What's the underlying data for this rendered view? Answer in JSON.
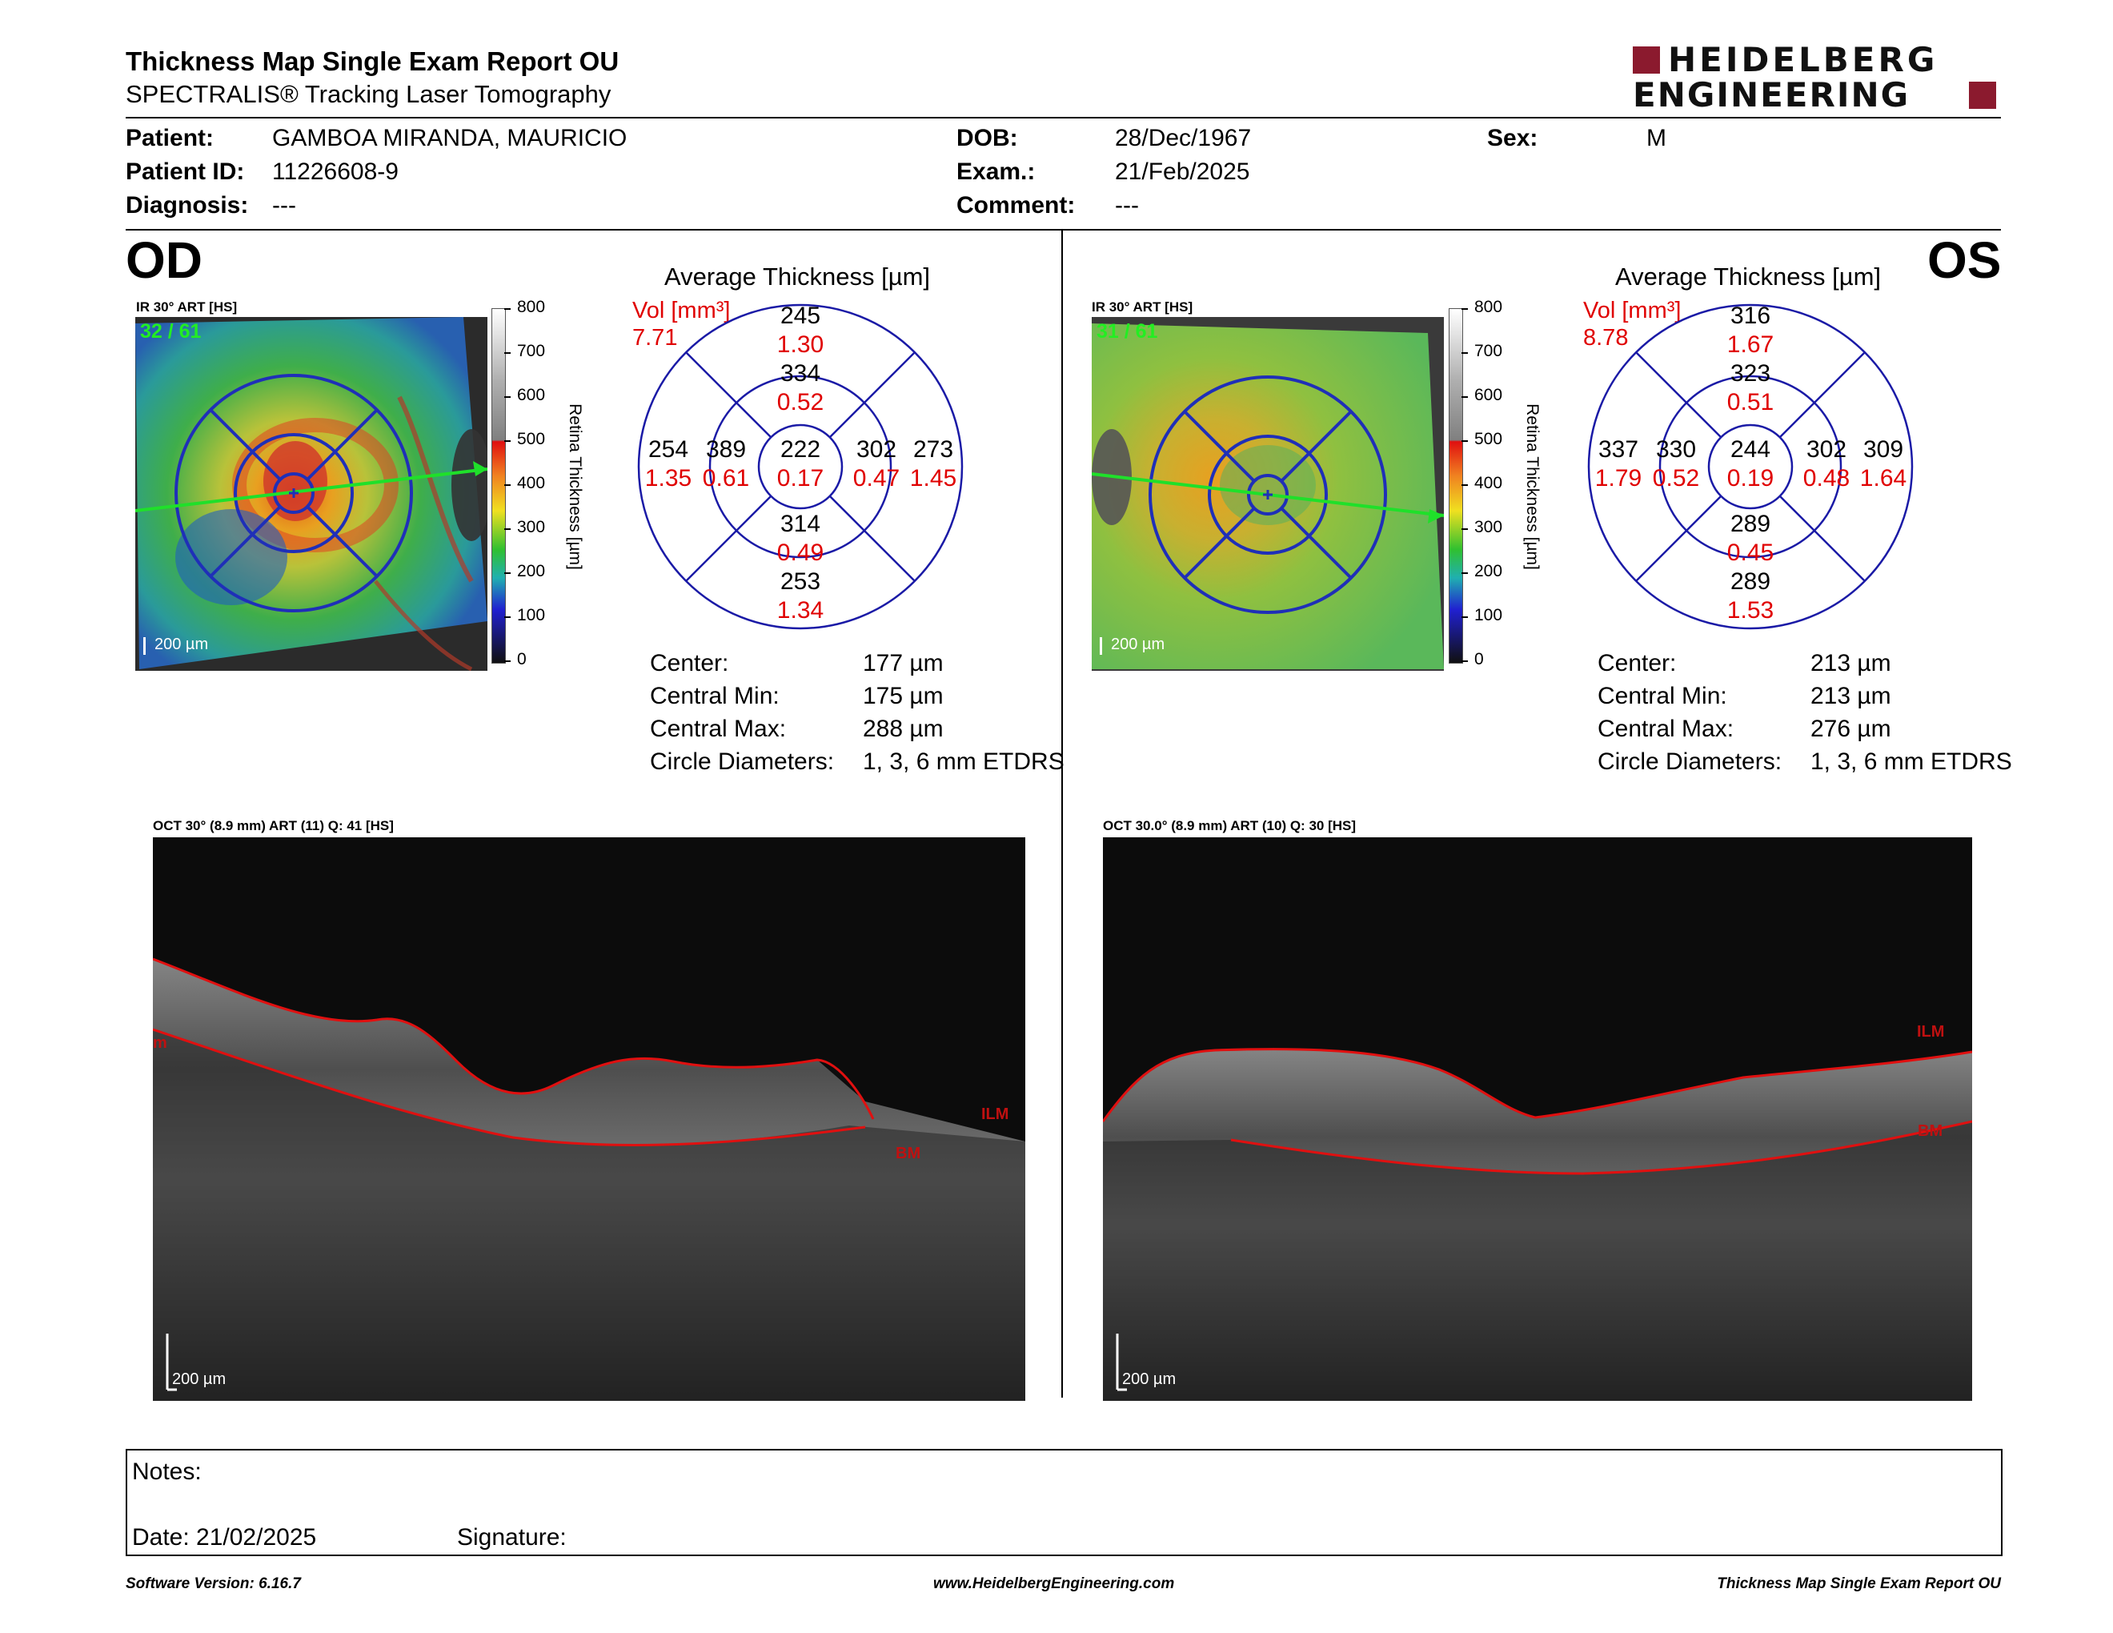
{
  "header": {
    "title": "Thickness Map Single Exam Report OU",
    "subtitle": "SPECTRALIS® Tracking Laser Tomography",
    "logo": {
      "line1": "HEIDELBERG",
      "line2": "ENGINEERING",
      "color": "#8b1a2e"
    }
  },
  "patient": {
    "patient_label": "Patient:",
    "patient_value": "GAMBOA MIRANDA, MAURICIO",
    "id_label": "Patient ID:",
    "id_value": "11226608-9",
    "diag_label": "Diagnosis:",
    "diag_value": "---",
    "dob_label": "DOB:",
    "dob_value": "28/Dec/1967",
    "exam_label": "Exam.:",
    "exam_value": "21/Feb/2025",
    "comment_label": "Comment:",
    "comment_value": "---",
    "sex_label": "Sex:",
    "sex_value": "M"
  },
  "od": {
    "label": "OD",
    "ir_label": "IR 30° ART [HS]",
    "frame": "32 / 61",
    "scale": "200 µm",
    "avg_title": "Average Thickness [µm]",
    "vol_label": "Vol [mm³]",
    "vol_value": "7.71",
    "grid": {
      "superior_outer": "245",
      "superior_outer_vol": "1.30",
      "superior_inner": "334",
      "superior_inner_vol": "0.52",
      "temporal_outer": "254",
      "temporal_outer_vol": "1.35",
      "temporal_inner": "389",
      "temporal_inner_vol": "0.61",
      "center": "222",
      "center_vol": "0.17",
      "nasal_inner": "302",
      "nasal_inner_vol": "0.47",
      "nasal_outer": "273",
      "nasal_outer_vol": "1.45",
      "inferior_inner": "314",
      "inferior_inner_vol": "0.49",
      "inferior_outer": "253",
      "inferior_outer_vol": "1.34"
    },
    "stats": {
      "center_label": "Center:",
      "center_value": "177 µm",
      "min_label": "Central Min:",
      "min_value": "175 µm",
      "max_label": "Central Max:",
      "max_value": "288 µm",
      "diam_label": "Circle Diameters:",
      "diam_value": "1, 3, 6 mm ETDRS"
    },
    "oct_label": "OCT 30° (8.9 mm) ART (11) Q: 41 [HS]",
    "oct_scale": "200 µm",
    "ilm": "ILM",
    "bm": "BM",
    "edge_mark": "m"
  },
  "os": {
    "label": "OS",
    "ir_label": "IR 30° ART [HS]",
    "frame": "31 / 61",
    "scale": "200 µm",
    "avg_title": "Average Thickness [µm]",
    "vol_label": "Vol [mm³]",
    "vol_value": "8.78",
    "grid": {
      "superior_outer": "316",
      "superior_outer_vol": "1.67",
      "superior_inner": "323",
      "superior_inner_vol": "0.51",
      "temporal_outer": "337",
      "temporal_outer_vol": "1.79",
      "temporal_inner": "330",
      "temporal_inner_vol": "0.52",
      "center": "244",
      "center_vol": "0.19",
      "nasal_inner": "302",
      "nasal_inner_vol": "0.48",
      "nasal_outer": "309",
      "nasal_outer_vol": "1.64",
      "inferior_inner": "289",
      "inferior_inner_vol": "0.45",
      "inferior_outer": "289",
      "inferior_outer_vol": "1.53"
    },
    "stats": {
      "center_label": "Center:",
      "center_value": "213 µm",
      "min_label": "Central Min:",
      "min_value": "213 µm",
      "max_label": "Central Max:",
      "max_value": "276 µm",
      "diam_label": "Circle Diameters:",
      "diam_value": "1, 3, 6 mm ETDRS"
    },
    "oct_label": "OCT 30.0° (8.9 mm) ART (10) Q: 30 [HS]",
    "oct_scale": "200 µm",
    "ilm": "ILM",
    "bm": "BM"
  },
  "colorbar": {
    "ticks": [
      "800",
      "700",
      "600",
      "500",
      "400",
      "300",
      "200",
      "100",
      "0"
    ],
    "label": "Retina Thickness [µm]"
  },
  "notes": {
    "notes_label": "Notes:",
    "date_label": "Date: 21/02/2025",
    "signature_label": "Signature:"
  },
  "footer": {
    "version": "Software Version: 6.16.7",
    "website": "www.HeidelbergEngineering.com",
    "report": "Thickness Map Single Exam Report OU"
  },
  "colors": {
    "vol_red": "#e00000",
    "grid_blue": "#1a1aa6",
    "brand": "#8b1a2e"
  }
}
